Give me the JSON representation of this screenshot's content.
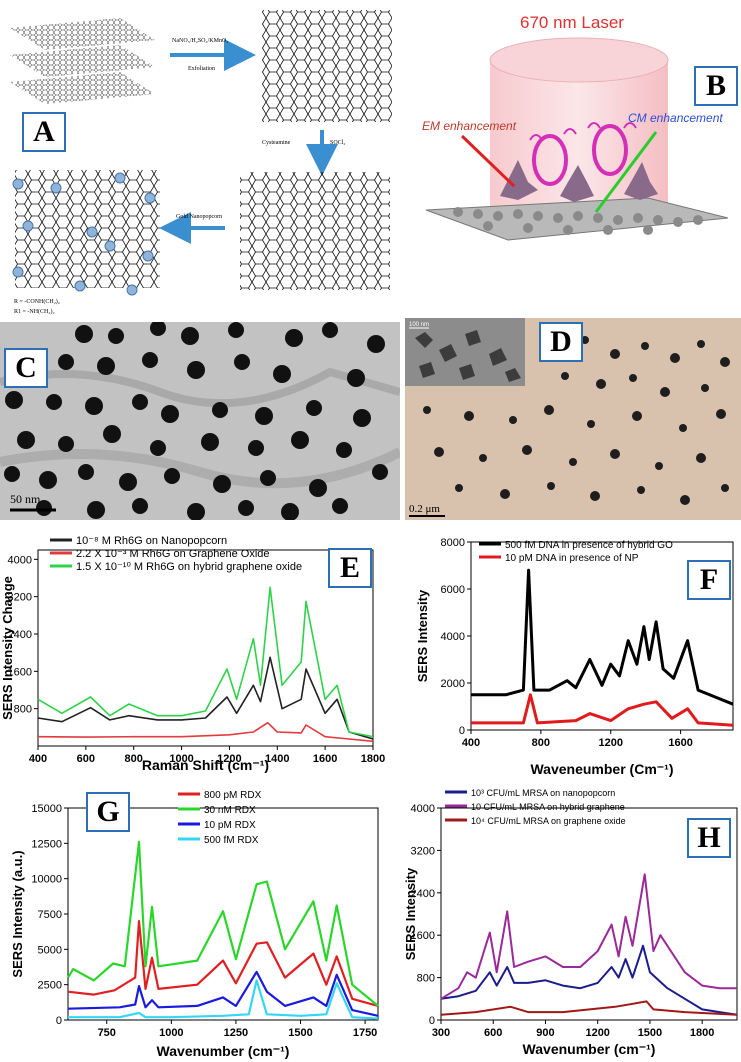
{
  "panelA": {
    "label": "A",
    "step1": "NaNO₃/H₂SO₄/KMnO₄",
    "step1b": "Exfoliation",
    "step2": "Cysteamine",
    "step2b": "SOCl₂",
    "step3": "Gold Nanopopcorn",
    "legendR": "R  =  -CONH(CH₂)₂",
    "legendR1": "R1 =  -NH(CH₂)₂"
  },
  "panelB": {
    "label": "B",
    "laser": "670 nm Laser",
    "em": "EM enhancement",
    "cm": "CM enhancement"
  },
  "panelC": {
    "label": "C",
    "scale": "50 nm"
  },
  "panelD": {
    "label": "D",
    "scale": "0.2 μm",
    "inset_scale": "100 nm"
  },
  "colors": {
    "label_border": "#2d6fb5",
    "arrow": "#3a8fd0"
  },
  "chart_data": [
    {
      "panel": "E",
      "type": "line",
      "xlabel": "Raman Shift (cm⁻¹)",
      "ylabel": "SERS Intensity Change",
      "xlim": [
        400,
        1800
      ],
      "ylim": [
        0,
        4200
      ],
      "xticks": [
        400,
        600,
        800,
        1000,
        1200,
        1400,
        1600,
        1800
      ],
      "yticks": [
        800,
        1600,
        2400,
        3200,
        4000
      ],
      "series": [
        {
          "name": "10⁻⁸ M Rh6G on Nanopopcorn",
          "color": "#222222",
          "x": [
            400,
            500,
            620,
            700,
            780,
            900,
            1000,
            1100,
            1190,
            1230,
            1300,
            1330,
            1370,
            1420,
            1500,
            1520,
            1600,
            1650,
            1700,
            1800
          ],
          "y": [
            600,
            520,
            820,
            560,
            650,
            560,
            560,
            600,
            1050,
            700,
            1300,
            950,
            1900,
            800,
            1000,
            1650,
            700,
            1000,
            300,
            150
          ]
        },
        {
          "name": "2.2 X 10⁻³ M Rh6G on Graphene Oxide",
          "color": "#e33b3b",
          "x": [
            400,
            600,
            800,
            1000,
            1200,
            1300,
            1360,
            1400,
            1500,
            1520,
            1600,
            1700,
            1800
          ],
          "y": [
            200,
            190,
            200,
            200,
            240,
            300,
            500,
            300,
            280,
            450,
            200,
            150,
            100
          ]
        },
        {
          "name": "1.5 X 10⁻¹⁰ M Rh6G on hybrid graphene oxide",
          "color": "#2fd34a",
          "x": [
            400,
            500,
            620,
            700,
            780,
            900,
            1000,
            1100,
            1190,
            1230,
            1300,
            1330,
            1370,
            1420,
            1500,
            1520,
            1600,
            1650,
            1700,
            1800
          ],
          "y": [
            1000,
            700,
            1050,
            650,
            900,
            650,
            650,
            750,
            1650,
            1000,
            2300,
            1300,
            3400,
            1300,
            1800,
            3100,
            1000,
            1300,
            300,
            200
          ]
        }
      ]
    },
    {
      "panel": "F",
      "type": "line",
      "xlabel": "Waveneumber (Cm⁻¹)",
      "ylabel": "SERS Intensity",
      "xlim": [
        400,
        1900
      ],
      "ylim": [
        0,
        8000
      ],
      "xticks": [
        400,
        800,
        1200,
        1600
      ],
      "yticks": [
        0,
        2000,
        4000,
        6000,
        8000
      ],
      "series": [
        {
          "name": "500 fM DNA in presence of hybrid GO",
          "color": "#000000",
          "x": [
            400,
            600,
            700,
            730,
            760,
            850,
            950,
            1000,
            1080,
            1150,
            1200,
            1250,
            1300,
            1350,
            1390,
            1420,
            1460,
            1500,
            1560,
            1640,
            1700,
            1800,
            1900
          ],
          "y": [
            1500,
            1500,
            1700,
            6800,
            1700,
            1700,
            2100,
            1800,
            3000,
            1900,
            2800,
            2300,
            3800,
            2800,
            4400,
            3000,
            4600,
            2600,
            2200,
            3800,
            1700,
            1400,
            1100
          ]
        },
        {
          "name": "10 pM DNA in presence of NP",
          "color": "#e01b1b",
          "x": [
            400,
            700,
            740,
            780,
            1000,
            1080,
            1200,
            1300,
            1390,
            1460,
            1550,
            1640,
            1700,
            1900
          ],
          "y": [
            300,
            300,
            1500,
            300,
            400,
            700,
            400,
            900,
            1100,
            1200,
            500,
            900,
            300,
            200
          ]
        }
      ]
    },
    {
      "panel": "G",
      "type": "line",
      "xlabel": "Wavenumber (cm⁻¹)",
      "ylabel": "SERS Intensity (a.u.)",
      "xlim": [
        600,
        1800
      ],
      "ylim": [
        0,
        15000
      ],
      "xticks": [
        750,
        1000,
        1250,
        1500,
        1750
      ],
      "yticks": [
        0,
        2500,
        5000,
        7500,
        10000,
        12500,
        15000
      ],
      "series": [
        {
          "name": "800 pM RDX",
          "color": "#e02020",
          "x": [
            600,
            700,
            780,
            860,
            875,
            900,
            925,
            950,
            1100,
            1200,
            1250,
            1330,
            1370,
            1440,
            1550,
            1600,
            1640,
            1700,
            1800
          ],
          "y": [
            2000,
            1800,
            2100,
            3000,
            7000,
            2200,
            4400,
            2200,
            2500,
            4200,
            2600,
            5400,
            5500,
            3000,
            4700,
            2500,
            4500,
            1500,
            1000
          ]
        },
        {
          "name": "30 nM RDX",
          "color": "#2bd62b",
          "x": [
            600,
            620,
            700,
            775,
            820,
            875,
            900,
            925,
            950,
            1100,
            1200,
            1250,
            1330,
            1370,
            1440,
            1550,
            1600,
            1640,
            1700,
            1800
          ],
          "y": [
            3000,
            3600,
            2800,
            4000,
            3800,
            12600,
            3800,
            8000,
            3800,
            4200,
            7700,
            4300,
            9600,
            9800,
            5000,
            8400,
            4200,
            8100,
            2500,
            1000
          ]
        },
        {
          "name": "10 pM RDX",
          "color": "#1a1ae0",
          "x": [
            600,
            800,
            860,
            875,
            900,
            925,
            950,
            1100,
            1200,
            1250,
            1330,
            1370,
            1440,
            1550,
            1600,
            1640,
            1700,
            1800
          ],
          "y": [
            800,
            900,
            1100,
            2400,
            900,
            1400,
            900,
            1000,
            1600,
            1000,
            3400,
            2000,
            1000,
            1600,
            1000,
            3200,
            700,
            300
          ]
        },
        {
          "name": "500 fM RDX",
          "color": "#33d7f5",
          "x": [
            600,
            800,
            875,
            900,
            1000,
            1200,
            1300,
            1330,
            1370,
            1500,
            1600,
            1640,
            1700,
            1800
          ],
          "y": [
            200,
            200,
            500,
            200,
            200,
            300,
            400,
            2800,
            400,
            300,
            400,
            2600,
            200,
            100
          ]
        }
      ]
    },
    {
      "panel": "H",
      "type": "line",
      "xlabel": "Wavenumber (cm⁻¹)",
      "ylabel": "SERS Intensity",
      "xlim": [
        300,
        2000
      ],
      "ylim": [
        0,
        4000
      ],
      "xticks": [
        300,
        600,
        900,
        1200,
        1500,
        1800
      ],
      "yticks": [
        0,
        800,
        1600,
        2400,
        3200,
        4000
      ],
      "series": [
        {
          "name": "10³ CFU/mL MRSA on nanopopcorn",
          "color": "#1c1c8c",
          "x": [
            300,
            400,
            500,
            580,
            620,
            680,
            720,
            800,
            900,
            1000,
            1100,
            1200,
            1280,
            1320,
            1360,
            1400,
            1460,
            1500,
            1600,
            1700,
            1800,
            1900,
            2000
          ],
          "y": [
            400,
            450,
            550,
            900,
            650,
            1000,
            700,
            700,
            750,
            650,
            600,
            700,
            1000,
            800,
            1150,
            800,
            1400,
            900,
            600,
            400,
            200,
            150,
            100
          ]
        },
        {
          "name": "10 CFU/mL MRSA on hybrid graphene",
          "color": "#9a2a9a",
          "x": [
            300,
            400,
            450,
            500,
            580,
            620,
            680,
            720,
            800,
            900,
            1000,
            1100,
            1200,
            1280,
            1320,
            1360,
            1400,
            1470,
            1520,
            1560,
            1700,
            1800,
            1900,
            2000
          ],
          "y": [
            400,
            600,
            900,
            800,
            1650,
            900,
            2050,
            1000,
            1100,
            1200,
            1000,
            1000,
            1300,
            1800,
            1200,
            1950,
            1400,
            2750,
            1300,
            1600,
            900,
            650,
            600,
            600
          ]
        },
        {
          "name": "10⁴ CFU/mL MRSA on graphene oxide",
          "color": "#a01818",
          "x": [
            300,
            500,
            700,
            800,
            1000,
            1300,
            1480,
            1520,
            1700,
            2000
          ],
          "y": [
            100,
            150,
            250,
            150,
            150,
            250,
            350,
            200,
            150,
            100
          ]
        }
      ]
    }
  ]
}
